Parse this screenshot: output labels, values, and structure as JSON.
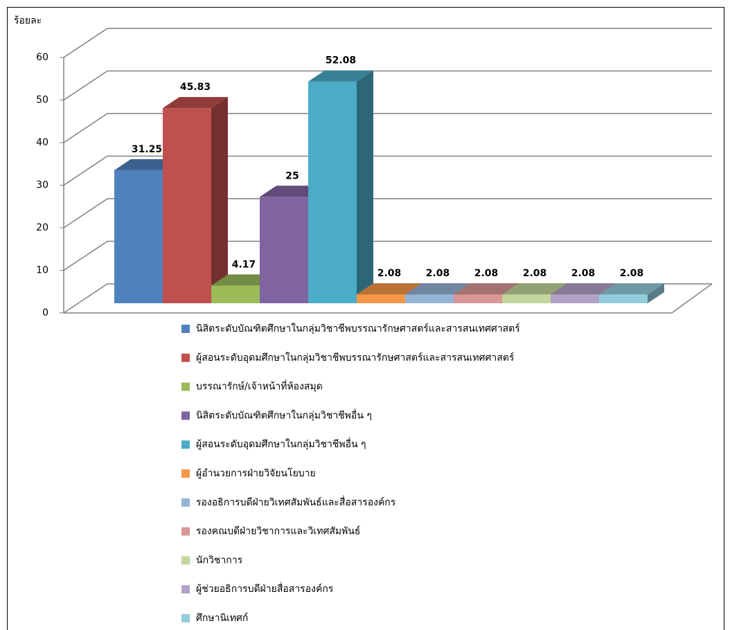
{
  "chart_data": {
    "type": "bar",
    "y_label": "ร้อยละ",
    "ylim": [
      0,
      60
    ],
    "yticks": [
      0,
      10,
      20,
      30,
      40,
      50,
      60
    ],
    "grid": true,
    "series": [
      {
        "name": "นิสิตระดับบัณฑิตศึกษาในกลุ่มวิชาชีพบรรณารักษศาสตร์และสารสนเทศศาสตร์",
        "color": "#4f81bd",
        "values": [
          31.25
        ]
      },
      {
        "name": "ผู้สอนระดับอุดมศึกษาในกลุ่มวิชาชีพบรรณารักษศาสตร์และสารสนเทศศาสตร์",
        "color": "#c0504d",
        "values": [
          45.83
        ]
      },
      {
        "name": "บรรณารักษ์/เจ้าหน้าที่ห้องสมุด",
        "color": "#9bbb59",
        "values": [
          4.17
        ]
      },
      {
        "name": "นิสิตระดับบัณฑิตศึกษาในกลุ่มวิชาชีพอื่น ๆ",
        "color": "#8064a2",
        "values": [
          25
        ]
      },
      {
        "name": "ผู้สอนระดับอุดมศึกษาในกลุ่มวิชาชีพอื่น ๆ",
        "color": "#4bacc6",
        "values": [
          52.08
        ]
      },
      {
        "name": "ผู้อำนวยการฝ่ายวิจัยนโยบาย",
        "color": "#f79646",
        "values": [
          2.08
        ]
      },
      {
        "name": "รองอธิการบดีฝ่ายวิเทศสัมพันธ์และสื่อสารองค์กร",
        "color": "#95b3d7",
        "values": [
          2.08
        ]
      },
      {
        "name": "รองคณบดีฝ่ายวิชาการและวิเทศสัมพันธ์",
        "color": "#d99694",
        "values": [
          2.08
        ]
      },
      {
        "name": "นักวิชาการ",
        "color": "#c3d69b",
        "values": [
          2.08
        ]
      },
      {
        "name": "ผู้ช่วยอธิการบดีฝ่ายสื่อสารองค์กร",
        "color": "#b3a2c7",
        "values": [
          2.08
        ]
      },
      {
        "name": "ศึกษานิเทศก์",
        "color": "#93cddd",
        "values": [
          2.08
        ]
      }
    ]
  }
}
